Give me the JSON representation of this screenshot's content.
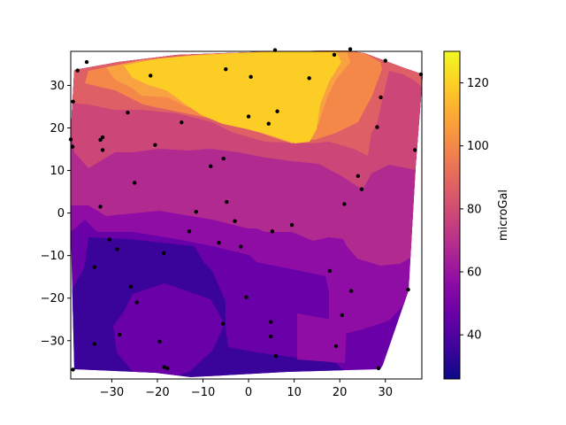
{
  "chart_data": {
    "type": "filled-contour",
    "title": "",
    "xlabel": "",
    "ylabel": "",
    "xlim": [
      -39,
      38
    ],
    "ylim": [
      -39,
      38
    ],
    "x_ticks": [
      -30,
      -20,
      -10,
      0,
      10,
      20,
      30
    ],
    "y_ticks": [
      -30,
      -20,
      -10,
      0,
      10,
      20,
      30
    ],
    "x_tick_labels": [
      "−30",
      "−20",
      "−10",
      "0",
      "10",
      "20",
      "30"
    ],
    "y_tick_labels": [
      "−30",
      "−20",
      "−10",
      "0",
      "10",
      "20",
      "30"
    ],
    "colormap": "plasma",
    "colorbar": {
      "label": "microGal",
      "range": [
        26,
        130
      ],
      "ticks": [
        40,
        60,
        80,
        100,
        120
      ],
      "tick_labels": [
        "40",
        "60",
        "80",
        "100",
        "120"
      ]
    },
    "contour_levels": [
      26,
      40,
      50,
      60,
      70,
      80,
      90,
      100,
      110,
      120,
      130
    ],
    "band_colors": [
      "#3a049a",
      "#6a00a8",
      "#8f0da4",
      "#b12a90",
      "#cc4778",
      "#de5f65",
      "#f48849",
      "#f9a242",
      "#fec029",
      "#f0f921"
    ],
    "grid": false,
    "points": [
      {
        "x": -37.5,
        "y": 33.5
      },
      {
        "x": -35.5,
        "y": 35.5
      },
      {
        "x": -38.5,
        "y": 26.2
      },
      {
        "x": -39.0,
        "y": 17.3
      },
      {
        "x": -38.6,
        "y": 15.6
      },
      {
        "x": -32.0,
        "y": 17.8
      },
      {
        "x": -32.5,
        "y": 17.2
      },
      {
        "x": -32.0,
        "y": 14.8
      },
      {
        "x": -26.5,
        "y": 23.6
      },
      {
        "x": -21.5,
        "y": 32.3
      },
      {
        "x": -20.5,
        "y": 16.0
      },
      {
        "x": -14.7,
        "y": 21.3
      },
      {
        "x": -5.0,
        "y": 33.8
      },
      {
        "x": 0.5,
        "y": 32.0
      },
      {
        "x": 5.8,
        "y": 38.3
      },
      {
        "x": 13.3,
        "y": 31.7
      },
      {
        "x": 18.8,
        "y": 37.2
      },
      {
        "x": 22.3,
        "y": 38.5
      },
      {
        "x": 30.0,
        "y": 35.8
      },
      {
        "x": 37.8,
        "y": 32.6
      },
      {
        "x": 29.0,
        "y": 27.2
      },
      {
        "x": 28.2,
        "y": 20.2
      },
      {
        "x": 0.0,
        "y": 22.7
      },
      {
        "x": 6.3,
        "y": 23.9
      },
      {
        "x": 4.4,
        "y": 21.0
      },
      {
        "x": -5.5,
        "y": 12.8
      },
      {
        "x": -8.3,
        "y": 11.0
      },
      {
        "x": -25.0,
        "y": 7.1
      },
      {
        "x": -32.5,
        "y": 1.5
      },
      {
        "x": -11.5,
        "y": 0.3
      },
      {
        "x": -4.8,
        "y": 2.6
      },
      {
        "x": -3.0,
        "y": -1.9
      },
      {
        "x": 9.5,
        "y": -2.8
      },
      {
        "x": 5.2,
        "y": -4.3
      },
      {
        "x": -13.0,
        "y": -4.3
      },
      {
        "x": -6.5,
        "y": -7.0
      },
      {
        "x": -1.7,
        "y": -7.9
      },
      {
        "x": -30.5,
        "y": -6.2
      },
      {
        "x": -28.8,
        "y": -8.5
      },
      {
        "x": -18.6,
        "y": -9.4
      },
      {
        "x": -33.8,
        "y": -12.7
      },
      {
        "x": -25.8,
        "y": -17.3
      },
      {
        "x": -24.5,
        "y": -21.0
      },
      {
        "x": -0.5,
        "y": -19.8
      },
      {
        "x": 17.8,
        "y": -13.6
      },
      {
        "x": 22.5,
        "y": -18.3
      },
      {
        "x": 20.5,
        "y": -24.0
      },
      {
        "x": 24.0,
        "y": 8.7
      },
      {
        "x": 24.8,
        "y": 5.6
      },
      {
        "x": 21.0,
        "y": 2.1
      },
      {
        "x": 36.5,
        "y": 14.8
      },
      {
        "x": 35.0,
        "y": -18.0
      },
      {
        "x": 4.9,
        "y": -25.6
      },
      {
        "x": 4.9,
        "y": -29.0
      },
      {
        "x": 6.0,
        "y": -33.6
      },
      {
        "x": -5.6,
        "y": -26.0
      },
      {
        "x": -28.3,
        "y": -28.6
      },
      {
        "x": -33.8,
        "y": -30.8
      },
      {
        "x": -19.5,
        "y": -30.2
      },
      {
        "x": -18.5,
        "y": -36.2
      },
      {
        "x": -17.8,
        "y": -36.5
      },
      {
        "x": -38.5,
        "y": -36.8
      },
      {
        "x": 19.2,
        "y": -31.3
      },
      {
        "x": 28.5,
        "y": -36.5
      }
    ]
  }
}
